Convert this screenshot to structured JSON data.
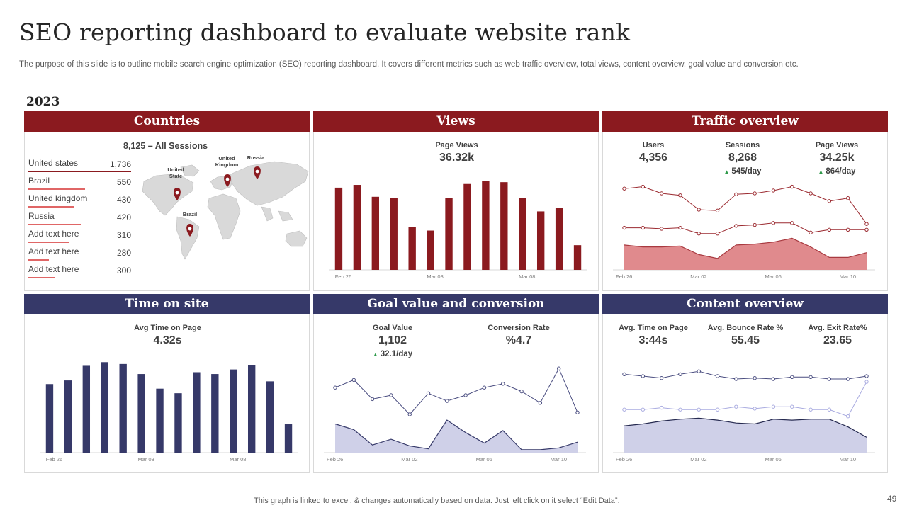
{
  "slide": {
    "title": "SEO reporting dashboard to evaluate website rank",
    "subtitle": "The purpose of this slide is to outline mobile search engine optimization (SEO) reporting dashboard. It covers different metrics such as web traffic overview, total views, content overview, goal value and conversion etc.",
    "year": "2023",
    "footer": "This graph is linked to excel, & changes automatically based on data. Just left click on it select “Edit Data”.",
    "page_number": "49"
  },
  "colors": {
    "red": "#8b1a1f",
    "red_light": "#e06666",
    "red_fill": "#e08a8d",
    "navy": "#363969",
    "lavender": "#cfd0e8",
    "periwinkle": "#a9abe0",
    "up_arrow": "#2e9a4a"
  },
  "countries": {
    "header": "Countries",
    "title": "8,125 – All Sessions",
    "rows": [
      {
        "name": "United states",
        "value": "1,736",
        "share": 100
      },
      {
        "name": "Brazil",
        "value": "550",
        "share": 55
      },
      {
        "name": "United kingdom",
        "value": "430",
        "share": 45
      },
      {
        "name": "Russia",
        "value": "420",
        "share": 52
      },
      {
        "name": "Add text here",
        "value": "310",
        "share": 40
      },
      {
        "name": "Add text here",
        "value": "280",
        "share": 20
      },
      {
        "name": "Add text here",
        "value": "300",
        "share": 26
      }
    ],
    "map_pins": [
      {
        "label_line1": "United",
        "label_line2": "State"
      },
      {
        "label_line1": "United",
        "label_line2": "Kingdom"
      },
      {
        "label_line1": "Russia",
        "label_line2": ""
      },
      {
        "label_line1": "Brazil",
        "label_line2": ""
      }
    ],
    "map_icon": "world-map-icon",
    "pin_icon": "map-pin-icon"
  },
  "views": {
    "header": "Views",
    "metric_label": "Page Views",
    "metric_value": "36.32k"
  },
  "traffic": {
    "header": "Traffic overview",
    "metrics": [
      {
        "label": "Users",
        "value": "4,356",
        "delta": ""
      },
      {
        "label": "Sessions",
        "value": "8,268",
        "delta": "545/day"
      },
      {
        "label": "Page Views",
        "value": "34.25k",
        "delta": "864/day"
      }
    ]
  },
  "time_on_site": {
    "header": "Time on site",
    "metric_label": "Avg Time on Page",
    "metric_value": "4.32s"
  },
  "goal": {
    "header": "Goal value and conversion",
    "metrics": [
      {
        "label": "Goal Value",
        "value": "1,102",
        "delta": "32.1/day"
      },
      {
        "label": "Conversion Rate",
        "value": "%4.7",
        "delta": ""
      }
    ]
  },
  "content": {
    "header": "Content overview",
    "metrics": [
      {
        "label": "Avg. Time on Page",
        "value": "3:44s"
      },
      {
        "label": "Avg. Bounce Rate %",
        "value": "55.45"
      },
      {
        "label": "Avg. Exit Rate%",
        "value": "23.65"
      }
    ]
  },
  "chart_data": [
    {
      "id": "views",
      "type": "bar",
      "title": "Page Views",
      "x_ticks": [
        "Feb 26",
        "Mar 03",
        "Mar 08"
      ],
      "categories": [
        "1",
        "2",
        "3",
        "4",
        "5",
        "6",
        "7",
        "8",
        "9",
        "10",
        "11",
        "12",
        "13",
        "14"
      ],
      "values": [
        90,
        93,
        80,
        79,
        47,
        43,
        79,
        94,
        97,
        96,
        79,
        64,
        68,
        27
      ],
      "ylim": [
        0,
        100
      ]
    },
    {
      "id": "traffic",
      "type": "area",
      "title": "Traffic overview",
      "x_ticks": [
        "Feb 26",
        "Mar 02",
        "Mar 06",
        "Mar 10"
      ],
      "series": [
        {
          "name": "Page Views",
          "style": "line-markers",
          "values": [
            85,
            87,
            80,
            78,
            63,
            62,
            79,
            80,
            83,
            87,
            80,
            72,
            75,
            48
          ]
        },
        {
          "name": "Sessions",
          "style": "line-markers",
          "values": [
            44,
            44,
            43,
            44,
            38,
            38,
            46,
            47,
            49,
            49,
            39,
            42,
            42,
            42
          ]
        },
        {
          "name": "Users",
          "style": "area",
          "values": [
            26,
            24,
            24,
            25,
            16,
            12,
            26,
            27,
            29,
            33,
            24,
            13,
            13,
            18
          ]
        }
      ],
      "ylim": [
        0,
        100
      ]
    },
    {
      "id": "time_on_site",
      "type": "bar",
      "title": "Avg Time on Page",
      "x_ticks": [
        "Feb 26",
        "Mar 03",
        "Mar 08"
      ],
      "categories": [
        "1",
        "2",
        "3",
        "4",
        "5",
        "6",
        "7",
        "8",
        "9",
        "10",
        "11",
        "12",
        "13",
        "14"
      ],
      "values": [
        75,
        79,
        95,
        99,
        97,
        86,
        70,
        65,
        88,
        86,
        91,
        96,
        78,
        31
      ],
      "ylim": [
        0,
        100
      ]
    },
    {
      "id": "goal",
      "type": "area",
      "title": "Goal value and conversion",
      "x_ticks": [
        "Feb 26",
        "Mar 02",
        "Mar 06",
        "Mar 10"
      ],
      "series": [
        {
          "name": "Conversion Rate",
          "style": "line-markers",
          "values": [
            68,
            76,
            56,
            60,
            40,
            62,
            54,
            60,
            68,
            72,
            64,
            52,
            88,
            42
          ]
        },
        {
          "name": "Goal Value",
          "style": "area",
          "values": [
            30,
            24,
            8,
            14,
            7,
            4,
            34,
            21,
            10,
            23,
            3,
            3,
            5,
            11
          ]
        }
      ],
      "ylim": [
        0,
        100
      ]
    },
    {
      "id": "content",
      "type": "area",
      "title": "Content overview",
      "x_ticks": [
        "Feb 26",
        "Mar 02",
        "Mar 06",
        "Mar 10"
      ],
      "series": [
        {
          "name": "Avg. Time on Page",
          "style": "line-markers",
          "values": [
            82,
            80,
            78,
            82,
            85,
            80,
            77,
            78,
            77,
            79,
            79,
            77,
            77,
            80
          ]
        },
        {
          "name": "Avg. Exit Rate%",
          "style": "line-markers-light",
          "values": [
            45,
            45,
            47,
            45,
            45,
            45,
            48,
            46,
            48,
            48,
            45,
            45,
            38,
            74
          ]
        },
        {
          "name": "Avg. Bounce Rate %",
          "style": "area",
          "values": [
            28,
            30,
            33,
            35,
            36,
            34,
            31,
            30,
            35,
            34,
            35,
            35,
            27,
            16
          ]
        }
      ],
      "ylim": [
        0,
        100
      ]
    }
  ]
}
